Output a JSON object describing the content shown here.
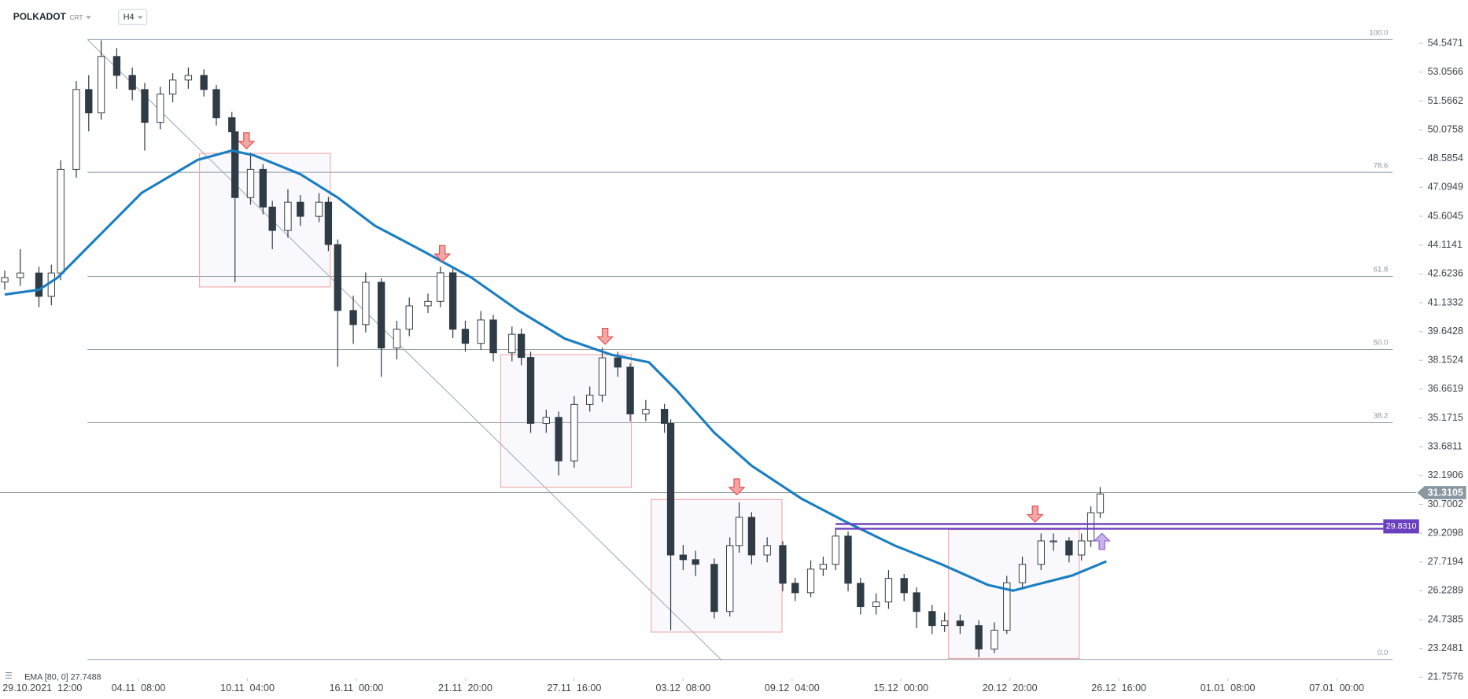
{
  "chart_data": {
    "type": "candlestick",
    "title": "POLKADOT",
    "instrument_type": "CRT",
    "interval": "H4",
    "x": [
      0,
      5,
      11,
      15,
      18,
      23,
      27,
      31,
      36,
      41,
      45,
      50,
      54,
      59,
      64,
      68,
      73,
      74,
      79,
      83,
      86,
      91,
      95,
      101,
      104,
      107,
      112,
      116,
      121,
      126,
      130,
      136,
      140,
      144,
      148,
      153,
      157,
      163,
      166,
      169,
      174,
      178,
      183,
      188,
      192,
      197,
      201,
      206,
      212,
      214,
      218,
      222,
      228,
      233,
      236,
      240,
      245,
      250,
      254,
      259,
      263,
      267,
      271,
      275,
      280,
      284,
      289,
      293,
      298,
      302,
      307,
      313,
      318,
      322,
      327,
      333,
      337,
      342,
      346,
      349,
      352
    ],
    "ohlc": [
      [
        42.2,
        42.8,
        41.8,
        42.43
      ],
      [
        42.43,
        43.9,
        42.0,
        42.67
      ],
      [
        42.67,
        43.0,
        40.9,
        41.46
      ],
      [
        41.46,
        43.1,
        41.0,
        42.67
      ],
      [
        42.67,
        48.5,
        42.3,
        48.03
      ],
      [
        48.03,
        52.6,
        47.6,
        52.16
      ],
      [
        52.16,
        52.9,
        50.0,
        50.95
      ],
      [
        50.95,
        54.7,
        50.6,
        53.87
      ],
      [
        53.87,
        54.3,
        52.2,
        52.89
      ],
      [
        52.89,
        53.3,
        51.6,
        52.16
      ],
      [
        52.16,
        52.5,
        49.0,
        50.46
      ],
      [
        50.46,
        52.3,
        50.1,
        51.92
      ],
      [
        51.92,
        53.0,
        51.5,
        52.65
      ],
      [
        52.65,
        53.3,
        52.2,
        52.89
      ],
      [
        52.89,
        53.2,
        51.8,
        52.16
      ],
      [
        52.16,
        52.4,
        50.3,
        50.7
      ],
      [
        50.7,
        51.0,
        49.5,
        49.97
      ],
      [
        49.97,
        50.2,
        42.19,
        46.57
      ],
      [
        46.57,
        48.9,
        46.2,
        48.03
      ],
      [
        48.03,
        48.3,
        45.7,
        46.08
      ],
      [
        46.08,
        46.4,
        43.9,
        44.87
      ],
      [
        44.87,
        47.0,
        44.5,
        46.33
      ],
      [
        46.33,
        46.7,
        45.1,
        45.6
      ],
      [
        45.6,
        46.8,
        45.3,
        46.33
      ],
      [
        46.33,
        46.6,
        43.8,
        44.14
      ],
      [
        44.14,
        44.4,
        37.81,
        40.73
      ],
      [
        40.73,
        41.5,
        39.0,
        40.0
      ],
      [
        40.0,
        42.7,
        39.6,
        42.19
      ],
      [
        42.19,
        42.4,
        37.3,
        38.79
      ],
      [
        38.79,
        40.2,
        38.2,
        39.76
      ],
      [
        39.76,
        41.4,
        39.4,
        40.97
      ],
      [
        40.97,
        41.6,
        40.6,
        41.2
      ],
      [
        41.2,
        43.0,
        40.9,
        42.68
      ],
      [
        42.68,
        42.9,
        39.3,
        39.76
      ],
      [
        39.76,
        40.2,
        38.6,
        39.03
      ],
      [
        39.03,
        40.7,
        38.7,
        40.24
      ],
      [
        40.24,
        40.5,
        38.1,
        38.54
      ],
      [
        38.54,
        39.9,
        38.1,
        39.5
      ],
      [
        39.5,
        39.8,
        37.9,
        38.3
      ],
      [
        38.3,
        38.6,
        34.4,
        34.89
      ],
      [
        34.89,
        35.6,
        34.4,
        35.2
      ],
      [
        35.2,
        35.5,
        32.2,
        32.95
      ],
      [
        32.95,
        36.3,
        32.6,
        35.87
      ],
      [
        35.87,
        36.8,
        35.5,
        36.35
      ],
      [
        36.35,
        38.8,
        36.0,
        38.28
      ],
      [
        38.28,
        38.6,
        37.3,
        37.8
      ],
      [
        37.8,
        38.0,
        35.0,
        35.38
      ],
      [
        35.38,
        36.1,
        35.0,
        35.62
      ],
      [
        35.62,
        35.9,
        34.4,
        34.89
      ],
      [
        34.89,
        35.1,
        24.19,
        28.08
      ],
      [
        28.08,
        28.6,
        27.3,
        27.84
      ],
      [
        27.84,
        28.3,
        27.0,
        27.6
      ],
      [
        27.6,
        27.9,
        24.8,
        25.16
      ],
      [
        25.16,
        29.0,
        24.9,
        28.57
      ],
      [
        28.57,
        30.8,
        28.2,
        30.03
      ],
      [
        30.03,
        30.3,
        27.6,
        28.08
      ],
      [
        28.08,
        29.0,
        27.7,
        28.57
      ],
      [
        28.57,
        28.8,
        26.2,
        26.62
      ],
      [
        26.62,
        26.9,
        25.7,
        26.13
      ],
      [
        26.13,
        27.8,
        25.9,
        27.35
      ],
      [
        27.35,
        28.0,
        27.0,
        27.6
      ],
      [
        27.6,
        29.5,
        27.3,
        29.06
      ],
      [
        29.06,
        29.3,
        26.2,
        26.62
      ],
      [
        26.62,
        26.9,
        25.0,
        25.41
      ],
      [
        25.41,
        26.1,
        25.0,
        25.65
      ],
      [
        25.65,
        27.3,
        25.3,
        26.87
      ],
      [
        26.87,
        27.1,
        25.7,
        26.13
      ],
      [
        26.13,
        26.4,
        24.3,
        25.16
      ],
      [
        25.16,
        25.5,
        24.0,
        24.43
      ],
      [
        24.43,
        25.1,
        24.1,
        24.67
      ],
      [
        24.67,
        25.0,
        24.0,
        24.43
      ],
      [
        24.43,
        24.7,
        22.8,
        23.22
      ],
      [
        23.22,
        24.6,
        23.0,
        24.19
      ],
      [
        24.19,
        27.0,
        24.0,
        26.65
      ],
      [
        26.65,
        28.0,
        26.3,
        27.6
      ],
      [
        27.6,
        29.2,
        27.3,
        28.81
      ],
      [
        28.81,
        29.2,
        28.3,
        28.81
      ],
      [
        28.81,
        29.0,
        27.7,
        28.08
      ],
      [
        28.08,
        29.2,
        27.8,
        28.81
      ],
      [
        28.81,
        30.6,
        28.5,
        30.27
      ],
      [
        30.27,
        31.6,
        30.0,
        31.24
      ]
    ],
    "up_color": "#ffffff",
    "down_color": "#2f3b45",
    "xlim": [
      0,
      446
    ],
    "xticks": [
      {
        "value": 8,
        "label": "29.10.2021  12:00"
      },
      {
        "value": 43,
        "label": "04.11  08:00"
      },
      {
        "value": 78,
        "label": "10.11  04:00"
      },
      {
        "value": 113,
        "label": "16.11  00:00"
      },
      {
        "value": 148,
        "label": "21.11  20:00"
      },
      {
        "value": 183,
        "label": "27.11  16:00"
      },
      {
        "value": 218,
        "label": "03.12  08:00"
      },
      {
        "value": 253,
        "label": "09.12  04:00"
      },
      {
        "value": 288,
        "label": "15.12  00:00"
      },
      {
        "value": 323,
        "label": "20.12  20:00"
      },
      {
        "value": 358,
        "label": "26.12  16:00"
      },
      {
        "value": 393,
        "label": "01.01  08:00"
      },
      {
        "value": 428,
        "label": "07.01  00:00"
      }
    ],
    "ylim": [
      21.7576,
      54.5471
    ],
    "yticks": [
      54.5471,
      53.0566,
      51.5662,
      50.0758,
      48.5854,
      47.0949,
      45.6045,
      44.1141,
      42.6236,
      41.1332,
      39.6428,
      38.1524,
      36.6619,
      35.1715,
      33.6811,
      32.1906,
      30.7002,
      29.2098,
      27.7194,
      26.2289,
      24.7385,
      23.2481,
      21.7576
    ],
    "ema": {
      "name": "EMA [80, 0]",
      "color": "#1a7ec2",
      "x": [
        0,
        11,
        17,
        29,
        44,
        62,
        73,
        80,
        95,
        107,
        119,
        135,
        150,
        165,
        180,
        195,
        207,
        216,
        228,
        240,
        256,
        271,
        286,
        301,
        316,
        324,
        331,
        343,
        354
      ],
      "values": [
        41.56,
        41.8,
        42.43,
        44.38,
        46.81,
        48.52,
        49.0,
        48.76,
        47.78,
        46.57,
        45.11,
        43.75,
        42.43,
        40.73,
        39.27,
        38.44,
        38.05,
        36.59,
        34.41,
        32.7,
        31.0,
        29.74,
        28.57,
        27.6,
        26.53,
        26.24,
        26.53,
        27.02,
        27.7488
      ]
    },
    "fib": {
      "levels": [
        {
          "value": 100,
          "label": "100.0"
        },
        78.6,
        61.8,
        {
          "value": 50,
          "label": "50.0"
        },
        38.2,
        {
          "value": 0,
          "label": "0.0"
        }
      ],
      "high": 54.74,
      "low": 22.68,
      "color": "#8a96a0"
    },
    "resistance": {
      "value": 29.831,
      "label": "29.8310",
      "color": "#6a3fc0"
    },
    "last_price": {
      "value": 31.3105,
      "color": "#8a96a0"
    }
  }
}
